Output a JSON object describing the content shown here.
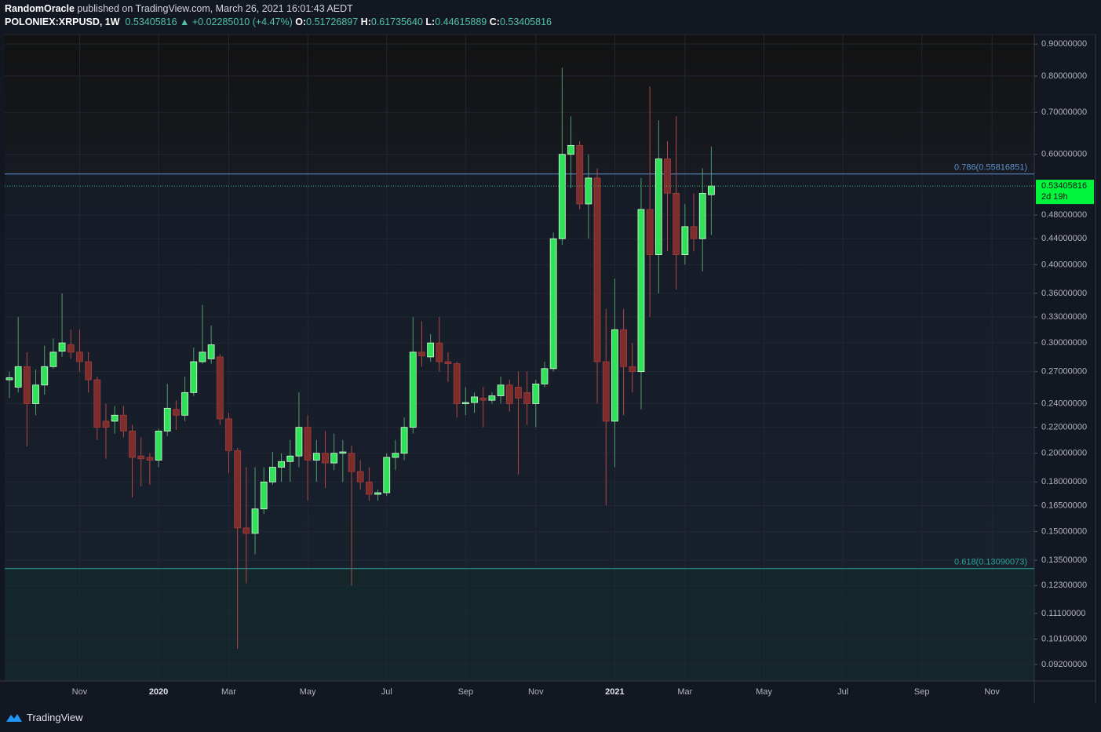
{
  "header": {
    "author": "RandomOracle",
    "published": "published on TradingView.com, March 26, 2021 16:01:43 AEDT",
    "symbol": "POLONIEX:XRPUSD, 1W",
    "last": "0.53405816",
    "change": "▲ +0.02285010 (+4.47%)",
    "ohlc": [
      {
        "label": "O:",
        "value": "0.51726897"
      },
      {
        "label": "H:",
        "value": "0.61735640"
      },
      {
        "label": "L:",
        "value": "0.44615889"
      },
      {
        "label": "C:",
        "value": "0.53405816"
      }
    ]
  },
  "footer": {
    "brand": "TradingView"
  },
  "chart_data": {
    "type": "candlestick",
    "log_scale": true,
    "grid": true,
    "up_color": "#2fe25a",
    "down_color": "#7e2d2d",
    "ylim": [
      0.0866,
      0.932
    ],
    "yticks": [
      {
        "value": 0.9,
        "label": "0.90000000"
      },
      {
        "value": 0.8,
        "label": "0.80000000"
      },
      {
        "value": 0.7,
        "label": "0.70000000"
      },
      {
        "value": 0.6,
        "label": "0.60000000"
      },
      {
        "value": 0.48,
        "label": "0.48000000"
      },
      {
        "value": 0.44,
        "label": "0.44000000"
      },
      {
        "value": 0.4,
        "label": "0.40000000"
      },
      {
        "value": 0.36,
        "label": "0.36000000"
      },
      {
        "value": 0.33,
        "label": "0.33000000"
      },
      {
        "value": 0.3,
        "label": "0.30000000"
      },
      {
        "value": 0.27,
        "label": "0.27000000"
      },
      {
        "value": 0.24,
        "label": "0.24000000"
      },
      {
        "value": 0.22,
        "label": "0.22000000"
      },
      {
        "value": 0.2,
        "label": "0.20000000"
      },
      {
        "value": 0.18,
        "label": "0.18000000"
      },
      {
        "value": 0.165,
        "label": "0.16500000"
      },
      {
        "value": 0.15,
        "label": "0.15000000"
      },
      {
        "value": 0.135,
        "label": "0.13500000"
      },
      {
        "value": 0.123,
        "label": "0.12300000"
      },
      {
        "value": 0.111,
        "label": "0.11100000"
      },
      {
        "value": 0.101,
        "label": "0.10100000"
      },
      {
        "value": 0.092,
        "label": "0.09200000"
      }
    ],
    "fib_levels": [
      {
        "value": 0.55816851,
        "label": "0.786(0.55816851)"
      },
      {
        "value": 0.13090073,
        "label": "0.618(0.13090073)"
      }
    ],
    "last_price": {
      "value": 0.53405816,
      "countdown": "2d 19h"
    },
    "categories": [
      null,
      null,
      null,
      null,
      null,
      null,
      null,
      null,
      "Nov",
      null,
      null,
      null,
      null,
      null,
      null,
      null,
      null,
      "2020",
      null,
      null,
      null,
      null,
      null,
      null,
      null,
      "Mar",
      null,
      null,
      null,
      null,
      null,
      null,
      null,
      null,
      "May",
      null,
      null,
      null,
      null,
      null,
      null,
      null,
      null,
      "Jul",
      null,
      null,
      null,
      null,
      null,
      null,
      null,
      null,
      "Sep",
      null,
      null,
      null,
      null,
      null,
      null,
      null,
      "Nov",
      null,
      null,
      null,
      null,
      null,
      null,
      null,
      null,
      "2021",
      null,
      null,
      null,
      null,
      null,
      null,
      null,
      "Mar",
      null,
      null,
      null,
      null,
      null,
      null,
      null,
      null,
      "May",
      null,
      null,
      null,
      null,
      null,
      null,
      null,
      null,
      "Jul",
      null,
      null,
      null,
      null,
      null,
      null,
      null,
      null,
      "Sep",
      null,
      null,
      null,
      null,
      null,
      null,
      null,
      "Nov",
      null,
      null,
      null,
      null
    ],
    "open": [
      0.262,
      0.255,
      0.275,
      0.24,
      0.257,
      0.275,
      0.291,
      0.298,
      0.29,
      0.28,
      0.262,
      0.225,
      0.225,
      0.23,
      0.217,
      0.198,
      0.197,
      0.195,
      0.217,
      0.235,
      0.23,
      0.25,
      0.28,
      0.283,
      0.285,
      0.227,
      0.202,
      0.152,
      0.149,
      0.163,
      0.18,
      0.19,
      0.194,
      0.198,
      0.22,
      0.195,
      0.2,
      0.193,
      0.2,
      0.2,
      0.187,
      0.18,
      0.172,
      0.173,
      0.197,
      0.2,
      0.22,
      0.29,
      0.285,
      0.3,
      0.28,
      0.278,
      0.24,
      0.241,
      0.245,
      0.243,
      0.247,
      0.257,
      0.255,
      0.25,
      0.24,
      0.258,
      0.273,
      0.44,
      0.6,
      0.62,
      0.5,
      0.55,
      0.28,
      0.225,
      0.315,
      0.275,
      0.27,
      0.49,
      0.415,
      0.59,
      0.52,
      0.415,
      0.46,
      0.44,
      0.51726897,
      null,
      null,
      null,
      null,
      null,
      null,
      null,
      null,
      null,
      null,
      null,
      null,
      null,
      null,
      null,
      null,
      null,
      null,
      null,
      null,
      null,
      null,
      null,
      null,
      null,
      null,
      null,
      null,
      null,
      null,
      null,
      null,
      null,
      null,
      null,
      null
    ],
    "high": [
      0.27,
      0.33,
      0.29,
      0.272,
      0.297,
      0.305,
      0.36,
      0.315,
      0.315,
      0.29,
      0.265,
      0.24,
      0.238,
      0.238,
      0.222,
      0.212,
      0.2,
      0.219,
      0.258,
      0.243,
      0.265,
      0.295,
      0.345,
      0.32,
      0.288,
      0.232,
      0.204,
      0.19,
      0.19,
      0.19,
      0.201,
      0.2,
      0.21,
      0.25,
      0.23,
      0.21,
      0.217,
      0.215,
      0.21,
      0.206,
      0.195,
      0.19,
      0.175,
      0.2,
      0.21,
      0.228,
      0.33,
      0.325,
      0.31,
      0.33,
      0.29,
      0.28,
      0.255,
      0.25,
      0.255,
      0.25,
      0.265,
      0.262,
      0.27,
      0.27,
      0.262,
      0.28,
      0.45,
      0.825,
      0.69,
      0.63,
      0.6,
      0.57,
      0.34,
      0.38,
      0.34,
      0.3,
      0.55,
      0.77,
      0.68,
      0.63,
      0.69,
      0.5,
      0.52,
      0.57,
      0.6173564,
      null,
      null,
      null,
      null,
      null,
      null,
      null,
      null,
      null,
      null,
      null,
      null,
      null,
      null,
      null,
      null,
      null,
      null,
      null,
      null,
      null,
      null,
      null,
      null,
      null,
      null,
      null,
      null,
      null,
      null,
      null,
      null,
      null,
      null,
      null,
      null
    ],
    "low": [
      0.245,
      0.25,
      0.205,
      0.23,
      0.248,
      0.273,
      0.285,
      0.283,
      0.27,
      0.25,
      0.21,
      0.196,
      0.215,
      0.212,
      0.17,
      0.177,
      0.178,
      0.19,
      0.213,
      0.218,
      0.225,
      0.247,
      0.278,
      0.278,
      0.222,
      0.186,
      0.0975,
      0.124,
      0.138,
      0.16,
      0.178,
      0.18,
      0.18,
      0.19,
      0.168,
      0.18,
      0.176,
      0.188,
      0.18,
      0.123,
      0.175,
      0.168,
      0.168,
      0.171,
      0.188,
      0.195,
      0.215,
      0.275,
      0.28,
      0.27,
      0.26,
      0.228,
      0.23,
      0.232,
      0.22,
      0.24,
      0.24,
      0.233,
      0.185,
      0.222,
      0.22,
      0.255,
      0.27,
      0.43,
      0.53,
      0.49,
      0.44,
      0.24,
      0.165,
      0.19,
      0.23,
      0.25,
      0.235,
      0.33,
      0.36,
      0.42,
      0.365,
      0.4,
      0.42,
      0.39,
      0.44615889,
      null,
      null,
      null,
      null,
      null,
      null,
      null,
      null,
      null,
      null,
      null,
      null,
      null,
      null,
      null,
      null,
      null,
      null,
      null,
      null,
      null,
      null,
      null,
      null,
      null,
      null,
      null,
      null,
      null,
      null,
      null,
      null,
      null,
      null,
      null,
      null
    ],
    "close": [
      0.264,
      0.275,
      0.24,
      0.257,
      0.275,
      0.29,
      0.3,
      0.29,
      0.28,
      0.262,
      0.22,
      0.22,
      0.23,
      0.217,
      0.197,
      0.196,
      0.195,
      0.217,
      0.236,
      0.23,
      0.25,
      0.28,
      0.29,
      0.298,
      0.227,
      0.202,
      0.152,
      0.149,
      0.163,
      0.18,
      0.19,
      0.194,
      0.198,
      0.22,
      0.195,
      0.2,
      0.193,
      0.2,
      0.201,
      0.187,
      0.18,
      0.172,
      0.173,
      0.197,
      0.2,
      0.22,
      0.29,
      0.286,
      0.3,
      0.28,
      0.278,
      0.24,
      0.241,
      0.246,
      0.243,
      0.247,
      0.257,
      0.24,
      0.245,
      0.24,
      0.258,
      0.273,
      0.44,
      0.6,
      0.62,
      0.5,
      0.55,
      0.28,
      0.225,
      0.315,
      0.275,
      0.27,
      0.49,
      0.415,
      0.59,
      0.52,
      0.415,
      0.46,
      0.44,
      0.52,
      0.53405816,
      null,
      null,
      null,
      null,
      null,
      null,
      null,
      null,
      null,
      null,
      null,
      null,
      null,
      null,
      null,
      null,
      null,
      null,
      null,
      null,
      null,
      null,
      null,
      null,
      null,
      null,
      null,
      null,
      null,
      null,
      null,
      null,
      null,
      null,
      null,
      null
    ]
  }
}
